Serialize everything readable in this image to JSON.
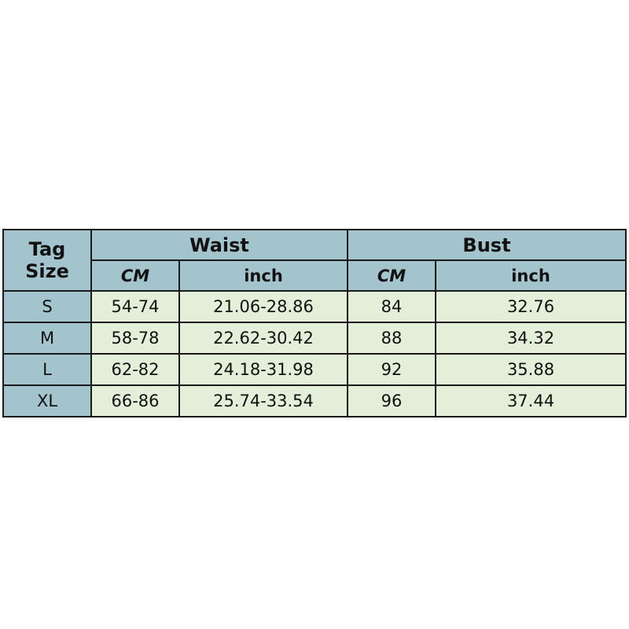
{
  "colors": {
    "header_bg": "#a3c3cd",
    "cell_bg": "#e3efd9",
    "border": "#1a1a1a"
  },
  "header": {
    "tag": "Tag",
    "size": "Size",
    "waist": "Waist",
    "bust": "Bust",
    "cm": "CM",
    "inch": "inch"
  },
  "rows": [
    {
      "size": "S",
      "waist_cm": "54-74",
      "waist_inch": "21.06-28.86",
      "bust_cm": "84",
      "bust_inch": "32.76"
    },
    {
      "size": "M",
      "waist_cm": "58-78",
      "waist_inch": "22.62-30.42",
      "bust_cm": "88",
      "bust_inch": "34.32"
    },
    {
      "size": "L",
      "waist_cm": "62-82",
      "waist_inch": "24.18-31.98",
      "bust_cm": "92",
      "bust_inch": "35.88"
    },
    {
      "size": "XL",
      "waist_cm": "66-86",
      "waist_inch": "25.74-33.54",
      "bust_cm": "96",
      "bust_inch": "37.44"
    }
  ]
}
